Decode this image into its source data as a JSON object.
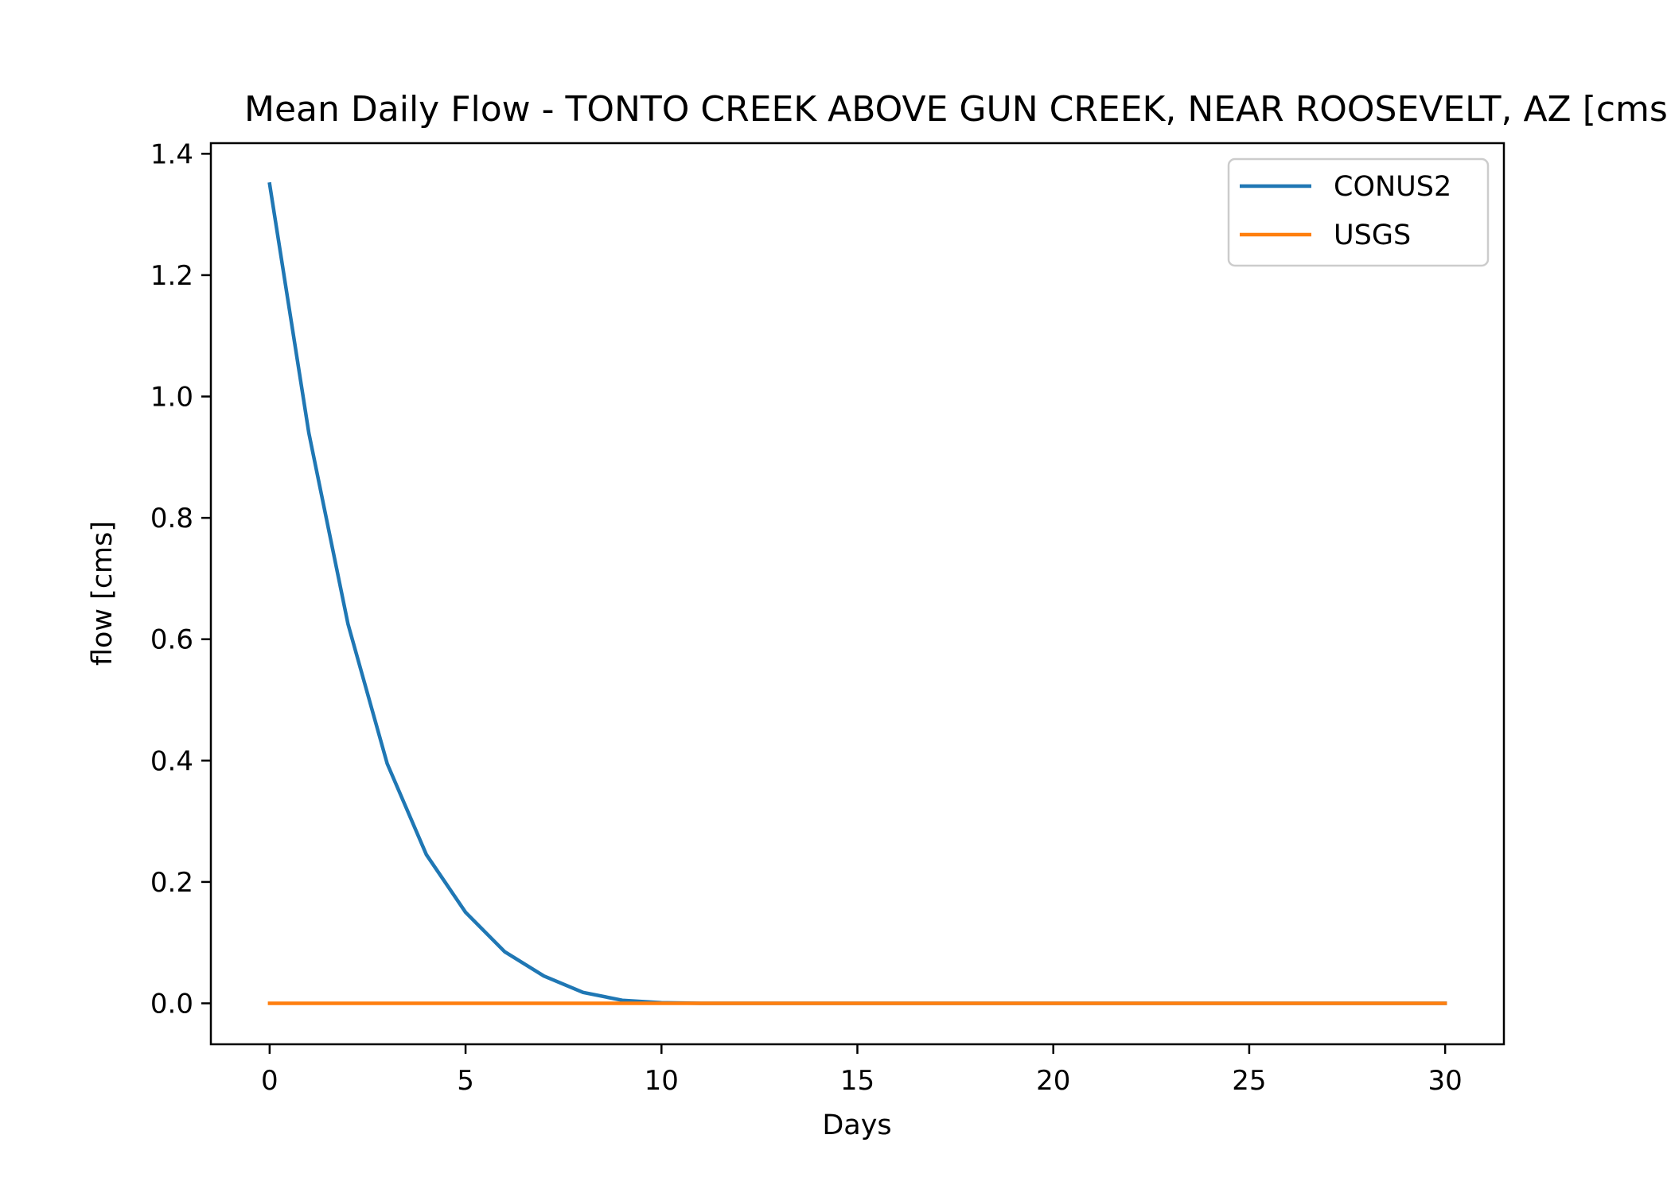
{
  "chart_data": {
    "type": "line",
    "title": "Mean Daily Flow - TONTO CREEK ABOVE GUN CREEK, NEAR ROOSEVELT, AZ [cms]",
    "xlabel": "Days",
    "ylabel": "flow [cms]",
    "xlim": [
      -1.5,
      31.5
    ],
    "ylim": [
      -0.0675,
      1.4175
    ],
    "xticks": [
      0,
      5,
      10,
      15,
      20,
      25,
      30
    ],
    "xtick_labels": [
      "0",
      "5",
      "10",
      "15",
      "20",
      "25",
      "30"
    ],
    "yticks": [
      0.0,
      0.2,
      0.4,
      0.6,
      0.8,
      1.0,
      1.2,
      1.4
    ],
    "ytick_labels": [
      "0.0",
      "0.2",
      "0.4",
      "0.6",
      "0.8",
      "1.0",
      "1.2",
      "1.4"
    ],
    "grid": false,
    "legend_position": "top-right",
    "x": [
      0,
      1,
      2,
      3,
      4,
      5,
      6,
      7,
      8,
      9,
      10,
      11,
      12,
      13,
      14,
      15,
      16,
      17,
      18,
      19,
      20,
      21,
      22,
      23,
      24,
      25,
      26,
      27,
      28,
      29,
      30
    ],
    "series": [
      {
        "name": "CONUS2",
        "color": "#1f77b4",
        "values": [
          1.35,
          0.94,
          0.625,
          0.395,
          0.245,
          0.15,
          0.085,
          0.045,
          0.018,
          0.005,
          0.001,
          0,
          0,
          0,
          0,
          0,
          0,
          0,
          0,
          0,
          0,
          0,
          0,
          0,
          0,
          0,
          0,
          0,
          0,
          0,
          0
        ]
      },
      {
        "name": "USGS",
        "color": "#ff7f0e",
        "values": [
          0,
          0,
          0,
          0,
          0,
          0,
          0,
          0,
          0,
          0,
          0,
          0,
          0,
          0,
          0,
          0,
          0,
          0,
          0,
          0,
          0,
          0,
          0,
          0,
          0,
          0,
          0,
          0,
          0,
          0,
          0
        ]
      }
    ]
  }
}
